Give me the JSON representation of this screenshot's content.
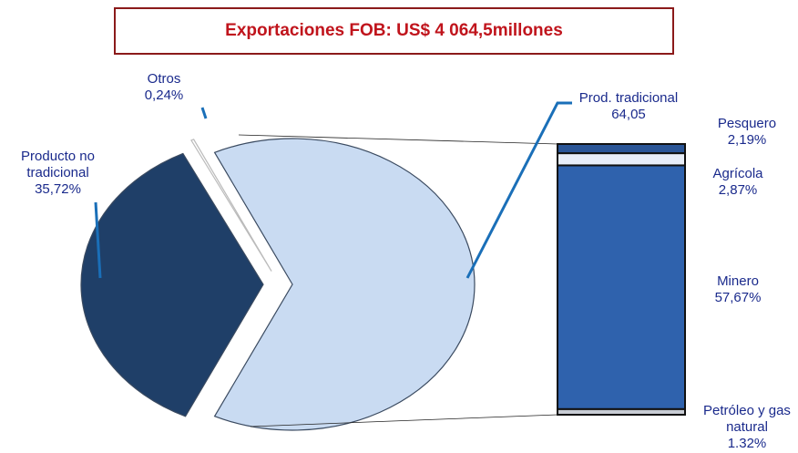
{
  "chart_data": {
    "type": "pie",
    "title": "Exportaciones FOB: US$ 4 064,5millones",
    "categories": [
      "Producto no tradicional",
      "Otros",
      "Prod. tradicional"
    ],
    "values": [
      35.72,
      0.24,
      64.05
    ],
    "value_labels": [
      "35,72%",
      "0,24%",
      "64,05"
    ],
    "colors": [
      "#1f3f68",
      "#ffffff",
      "#c9dbf2"
    ],
    "breakdown": {
      "type": "bar",
      "categories": [
        "Pesquero",
        "Agrícola",
        "Minero",
        "Petróleo y gas natural"
      ],
      "values": [
        2.19,
        2.87,
        57.67,
        1.32
      ],
      "value_labels": [
        "2,19%",
        "2,87%",
        "57,67%",
        "1.32%"
      ],
      "colors": [
        "#2a5596",
        "#e8eef8",
        "#2f62ad",
        "#c8ccd4"
      ]
    }
  }
}
